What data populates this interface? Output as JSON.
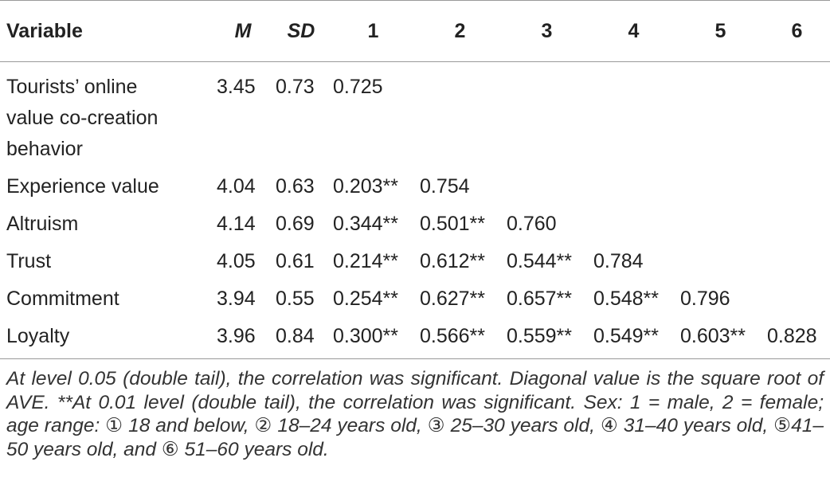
{
  "table": {
    "header": [
      "Variable",
      "M",
      "SD",
      "1",
      "2",
      "3",
      "4",
      "5",
      "6"
    ],
    "rows": [
      [
        "Tourists’ online value co-creation behavior",
        "3.45",
        "0.73",
        "0.725"
      ],
      [
        "Experience value",
        "4.04",
        "0.63",
        "0.203**",
        "0.754"
      ],
      [
        "Altruism",
        "4.14",
        "0.69",
        "0.344**",
        "0.501**",
        "0.760"
      ],
      [
        "Trust",
        "4.05",
        "0.61",
        "0.214**",
        "0.612**",
        "0.544**",
        "0.784"
      ],
      [
        "Commitment",
        "3.94",
        "0.55",
        "0.254**",
        "0.627**",
        "0.657**",
        "0.548**",
        "0.796"
      ],
      [
        "Loyalty",
        "3.96",
        "0.84",
        "0.300**",
        "0.566**",
        "0.559**",
        "0.549**",
        "0.603**",
        "0.828"
      ]
    ]
  },
  "footnote": "At level 0.05 (double tail), the correlation was significant. Diagonal value is the square root of AVE. **At 0.01 level (double tail), the correlation was significant. Sex: 1 = male, 2 = female; age range: ① 18 and below, ② 18–24 years old, ③ 25–30 years old, ④ 31–40 years old, ⑤41–50 years old, and ⑥ 51–60 years old."
}
